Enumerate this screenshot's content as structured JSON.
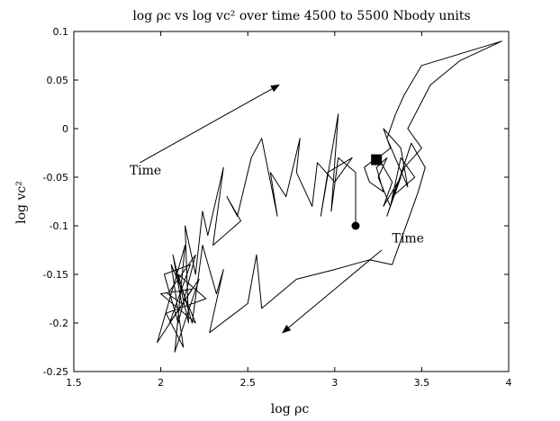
{
  "chart_data": {
    "type": "line",
    "title": "log ρc vs log vc² over time 4500 to 5500 Nbody units",
    "xlabel": "log ρc",
    "ylabel": "log vc²",
    "xlim": [
      1.5,
      4
    ],
    "ylim": [
      -0.25,
      0.1
    ],
    "xticks": [
      "1.5",
      "2",
      "2.5",
      "3",
      "3.5",
      "4"
    ],
    "yticks": [
      "-0.25",
      "-0.2",
      "-0.15",
      "-0.1",
      "-0.05",
      "0",
      "0.05",
      "0.1"
    ],
    "grid": false,
    "legend": "none",
    "series": [
      {
        "color": "#000000",
        "points": [
          [
            3.12,
            -0.1
          ],
          [
            3.12,
            -0.045
          ],
          [
            3.02,
            -0.03
          ],
          [
            2.98,
            -0.085
          ],
          [
            3.02,
            0.015
          ],
          [
            2.92,
            -0.09
          ],
          [
            2.96,
            -0.045
          ],
          [
            3.1,
            -0.03
          ],
          [
            3.0,
            -0.055
          ],
          [
            2.9,
            -0.035
          ],
          [
            2.87,
            -0.08
          ],
          [
            2.78,
            -0.045
          ],
          [
            2.8,
            -0.01
          ],
          [
            2.72,
            -0.07
          ],
          [
            2.63,
            -0.045
          ],
          [
            2.67,
            -0.09
          ],
          [
            2.58,
            -0.01
          ],
          [
            2.52,
            -0.03
          ],
          [
            2.44,
            -0.09
          ],
          [
            2.38,
            -0.07
          ],
          [
            2.46,
            -0.095
          ],
          [
            2.3,
            -0.12
          ],
          [
            2.36,
            -0.04
          ],
          [
            2.27,
            -0.11
          ],
          [
            2.24,
            -0.085
          ],
          [
            2.2,
            -0.15
          ],
          [
            2.14,
            -0.1
          ],
          [
            2.16,
            -0.2
          ],
          [
            2.07,
            -0.13
          ],
          [
            2.12,
            -0.18
          ],
          [
            2.04,
            -0.17
          ],
          [
            2.2,
            -0.13
          ],
          [
            2.1,
            -0.2
          ],
          [
            2.02,
            -0.15
          ],
          [
            2.17,
            -0.14
          ],
          [
            2.05,
            -0.2
          ],
          [
            2.22,
            -0.155
          ],
          [
            2.08,
            -0.23
          ],
          [
            2.14,
            -0.12
          ],
          [
            1.98,
            -0.22
          ],
          [
            2.18,
            -0.165
          ],
          [
            2.0,
            -0.17
          ],
          [
            2.2,
            -0.2
          ],
          [
            2.06,
            -0.14
          ],
          [
            2.13,
            -0.225
          ],
          [
            2.03,
            -0.19
          ],
          [
            2.26,
            -0.175
          ],
          [
            2.1,
            -0.15
          ],
          [
            2.18,
            -0.2
          ],
          [
            2.24,
            -0.12
          ],
          [
            2.32,
            -0.17
          ],
          [
            2.36,
            -0.145
          ],
          [
            2.28,
            -0.21
          ],
          [
            2.5,
            -0.18
          ],
          [
            2.55,
            -0.13
          ],
          [
            2.58,
            -0.185
          ],
          [
            2.78,
            -0.155
          ],
          [
            3.0,
            -0.145
          ],
          [
            3.2,
            -0.135
          ],
          [
            3.33,
            -0.14
          ],
          [
            3.48,
            -0.065
          ],
          [
            3.52,
            -0.04
          ],
          [
            3.44,
            -0.015
          ],
          [
            3.3,
            -0.09
          ],
          [
            3.38,
            -0.05
          ],
          [
            3.28,
            -0.08
          ],
          [
            3.33,
            -0.055
          ],
          [
            3.25,
            -0.03
          ],
          [
            3.32,
            -0.02
          ],
          [
            3.28,
            0.0
          ],
          [
            3.38,
            -0.02
          ],
          [
            3.42,
            -0.06
          ],
          [
            3.3,
            -0.01
          ],
          [
            3.35,
            0.015
          ],
          [
            3.4,
            0.035
          ],
          [
            3.5,
            0.065
          ],
          [
            3.96,
            0.09
          ],
          [
            3.72,
            0.07
          ],
          [
            3.55,
            0.045
          ],
          [
            3.42,
            0.0
          ],
          [
            3.5,
            -0.02
          ],
          [
            3.4,
            -0.04
          ],
          [
            3.33,
            -0.07
          ],
          [
            3.46,
            -0.05
          ],
          [
            3.38,
            -0.03
          ],
          [
            3.32,
            -0.08
          ],
          [
            3.25,
            -0.05
          ],
          [
            3.3,
            -0.03
          ],
          [
            3.24,
            -0.04
          ],
          [
            3.28,
            -0.065
          ],
          [
            3.2,
            -0.055
          ],
          [
            3.17,
            -0.04
          ],
          [
            3.24,
            -0.03
          ]
        ]
      }
    ],
    "markers": [
      {
        "shape": "circle",
        "x": 3.12,
        "y": -0.1
      },
      {
        "shape": "square",
        "x": 3.24,
        "y": -0.032
      }
    ],
    "annotations": [
      {
        "text": "Time",
        "text_x": 1.82,
        "text_y": -0.047,
        "arrow_from": [
          1.88,
          -0.035
        ],
        "arrow_to": [
          2.68,
          0.045
        ]
      },
      {
        "text": "Time",
        "text_x": 3.33,
        "text_y": -0.117,
        "arrow_from": [
          3.27,
          -0.125
        ],
        "arrow_to": [
          2.7,
          -0.21
        ]
      }
    ]
  }
}
